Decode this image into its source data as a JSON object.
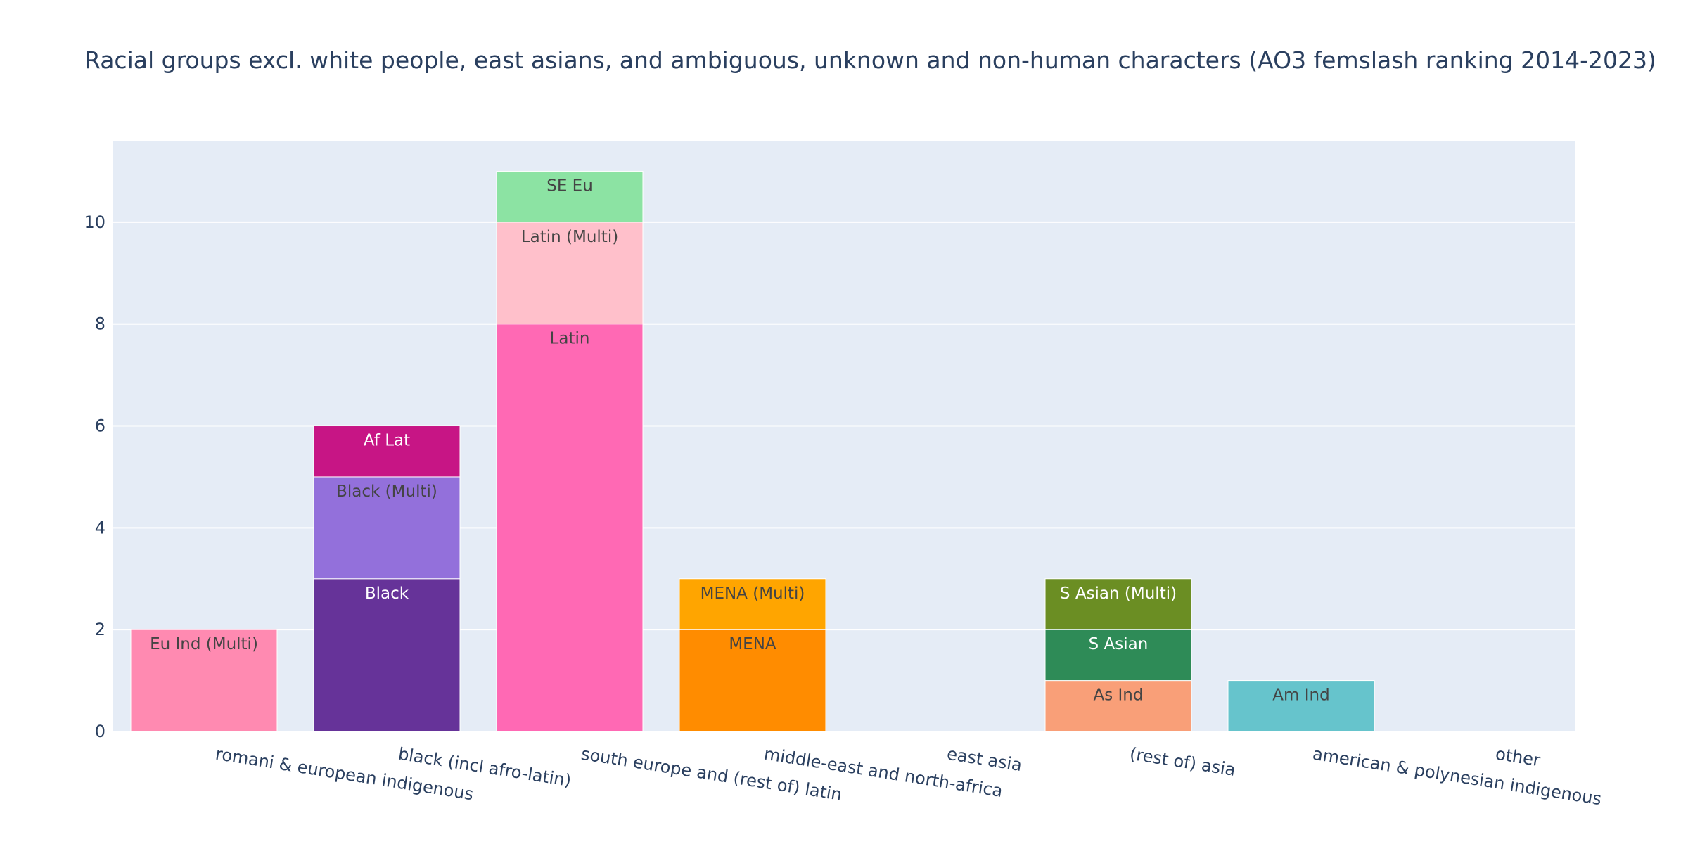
{
  "chart_data": {
    "type": "bar",
    "barmode": "stack",
    "title": "Racial groups excl. white people, east asians, and ambiguous, unknown and non-human characters (AO3 femslash ranking 2014-2023)",
    "xlabel": "",
    "ylabel": "",
    "ylim": [
      0,
      11.6
    ],
    "yticks": [
      0,
      2,
      4,
      6,
      8,
      10
    ],
    "grid": true,
    "legend": "none",
    "categories": [
      "romani & european indigenous",
      "black (incl afro-latin)",
      "south europe and (rest of) latin",
      "middle-east and north-africa",
      "east asia",
      "(rest of) asia",
      "american & polynesian indigenous",
      "other"
    ],
    "series": [
      {
        "label": "Eu Ind (Multi)",
        "category": "romani & european indigenous",
        "value": 2,
        "color": "#ff8ab1",
        "text_color": "#444444"
      },
      {
        "label": "Black",
        "category": "black (incl afro-latin)",
        "value": 3,
        "color": "#663399",
        "text_color": "#ffffff"
      },
      {
        "label": "Black (Multi)",
        "category": "black (incl afro-latin)",
        "value": 2,
        "color": "#9370db",
        "text_color": "#444444"
      },
      {
        "label": "Af Lat",
        "category": "black (incl afro-latin)",
        "value": 1,
        "color": "#c71585",
        "text_color": "#ffffff"
      },
      {
        "label": "Latin",
        "category": "south europe and (rest of) latin",
        "value": 8,
        "color": "#ff69b4",
        "text_color": "#444444"
      },
      {
        "label": "Latin (Multi)",
        "category": "south europe and (rest of) latin",
        "value": 2,
        "color": "#ffc0cb",
        "text_color": "#444444"
      },
      {
        "label": "SE Eu",
        "category": "south europe and (rest of) latin",
        "value": 1,
        "color": "#8ce3a3",
        "text_color": "#444444"
      },
      {
        "label": "MENA",
        "category": "middle-east and north-africa",
        "value": 2,
        "color": "#ff8c00",
        "text_color": "#444444"
      },
      {
        "label": "MENA (Multi)",
        "category": "middle-east and north-africa",
        "value": 1,
        "color": "#ffa500",
        "text_color": "#444444"
      },
      {
        "label": "As Ind",
        "category": "(rest of) asia",
        "value": 1,
        "color": "#f99f78",
        "text_color": "#444444"
      },
      {
        "label": "S Asian",
        "category": "(rest of) asia",
        "value": 1,
        "color": "#2e8b57",
        "text_color": "#ffffff"
      },
      {
        "label": "S Asian (Multi)",
        "category": "(rest of) asia",
        "value": 1,
        "color": "#6b8e23",
        "text_color": "#ffffff"
      },
      {
        "label": "Am Ind",
        "category": "american & polynesian indigenous",
        "value": 1,
        "color": "#66c4cc",
        "text_color": "#444444"
      }
    ],
    "colors": {
      "plot_bg": "#e5ecf6",
      "grid": "#ffffff",
      "axis_text": "#2a3f5f"
    }
  }
}
